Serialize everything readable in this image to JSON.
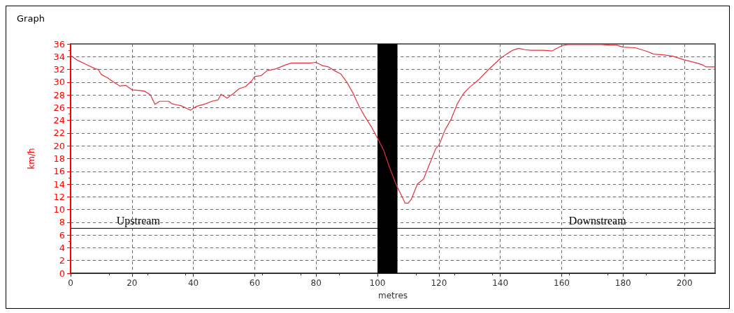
{
  "chart_data": {
    "type": "line",
    "title": "Graph",
    "xlabel": "metres",
    "ylabel": "km/h",
    "xlim": [
      0,
      210
    ],
    "xticks": [
      0,
      20,
      40,
      60,
      80,
      100,
      120,
      140,
      160,
      180,
      200
    ],
    "ylim": [
      0,
      36
    ],
    "yticks": [
      0,
      2,
      4,
      6,
      8,
      10,
      12,
      14,
      16,
      18,
      20,
      22,
      24,
      26,
      28,
      30,
      32,
      34,
      36
    ],
    "grid": true,
    "marker": "none",
    "line_style": "solid",
    "series": [
      {
        "color": "#e8303a",
        "x": [
          0,
          2,
          5,
          8,
          9,
          10,
          12,
          14,
          16,
          18,
          20,
          22,
          24,
          26,
          27.5,
          29,
          32,
          33,
          36,
          39,
          41,
          44,
          46,
          48,
          49,
          51,
          53,
          55,
          57,
          59,
          60,
          62,
          64,
          67,
          70,
          72,
          75,
          78,
          80,
          82,
          84,
          86,
          88,
          90,
          92,
          94,
          96,
          98,
          100,
          102,
          104,
          106,
          108,
          109,
          110,
          111,
          113,
          115,
          117,
          119,
          120,
          122,
          124,
          126,
          128,
          130,
          133,
          136,
          138,
          140,
          142,
          144,
          146,
          148,
          150,
          154,
          157,
          158,
          160,
          162,
          165,
          168,
          170,
          173,
          176,
          178,
          180,
          184,
          186,
          188,
          190,
          193,
          196,
          198,
          200,
          204,
          206,
          207,
          210
        ],
        "values": [
          34.2,
          33.5,
          32.8,
          32.1,
          32,
          31.2,
          30.7,
          30,
          29.4,
          29.5,
          28.8,
          28.7,
          28.6,
          28,
          26.5,
          27,
          27,
          26.6,
          26.3,
          25.6,
          26.2,
          26.6,
          27,
          27.2,
          28.1,
          27.5,
          28.2,
          29,
          29.3,
          30.2,
          30.9,
          31,
          31.8,
          32.1,
          32.7,
          33,
          33,
          33,
          33.1,
          32.6,
          32.4,
          31.8,
          31.3,
          30,
          28.3,
          26.2,
          24.5,
          23,
          21.2,
          19.3,
          16.5,
          14,
          12,
          11,
          11,
          11.6,
          14,
          14.8,
          17.2,
          19.6,
          20.1,
          22.5,
          24.2,
          26.6,
          28.2,
          29.2,
          30.4,
          31.9,
          32.8,
          33.7,
          34.4,
          35,
          35.3,
          35.1,
          35,
          35,
          34.9,
          35.2,
          35.7,
          35.9,
          35.9,
          35.9,
          35.9,
          35.9,
          35.8,
          35.8,
          35.5,
          35.4,
          35.1,
          34.8,
          34.4,
          34.3,
          34.1,
          33.8,
          33.5,
          33,
          32.7,
          32.4,
          32.4
        ]
      }
    ],
    "ref_lines": [
      {
        "axis": "y",
        "value": 7.1,
        "color": "#000000",
        "line_style": "solid"
      }
    ],
    "bands": [
      {
        "axis": "x",
        "from": 100,
        "to": 106.5,
        "color": "#000000"
      }
    ],
    "annotations": [
      "Upstream",
      "Downstream"
    ]
  }
}
